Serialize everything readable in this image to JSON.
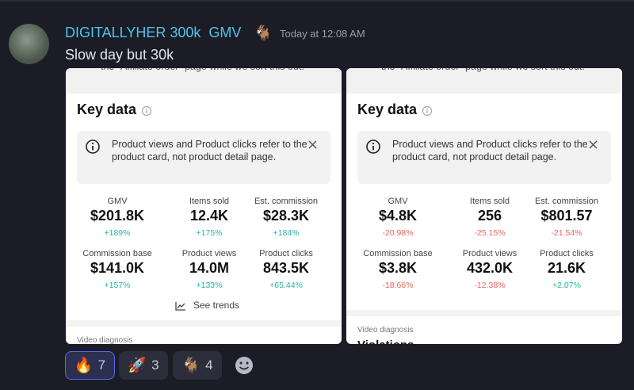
{
  "message": {
    "author": "DIGITALLYHER 300k  GMV",
    "author_emoji": "🐐",
    "timestamp": "Today at 12:08 AM",
    "text": "Slow day but 30k"
  },
  "cards": [
    {
      "top_text": "the “Affiliate order” page while we sort this out.",
      "title": "Key data",
      "notice": "Product views and Product clicks refer to the product card, not product detail page.",
      "metrics": [
        {
          "label": "GMV",
          "value": "$201.8K",
          "change": "+189%"
        },
        {
          "label": "Items sold",
          "value": "12.4K",
          "change": "+175%"
        },
        {
          "label": "Est. commission",
          "value": "$28.3K",
          "change": "+184%"
        },
        {
          "label": "Commission base",
          "value": "$141.0K",
          "change": "+157%"
        },
        {
          "label": "Product views",
          "value": "14.0M",
          "change": "+133%"
        },
        {
          "label": "Product clicks",
          "value": "843.5K",
          "change": "+65.44%"
        }
      ],
      "footer": "See trends",
      "section": "Video diagnosis"
    },
    {
      "top_text": "the “Affiliate order” page while we sort this out.",
      "title": "Key data",
      "notice": "Product views and Product clicks refer to the product card, not product detail page.",
      "metrics": [
        {
          "label": "GMV",
          "value": "$4.8K",
          "change": "-20.98%"
        },
        {
          "label": "Items sold",
          "value": "256",
          "change": "-25.15%"
        },
        {
          "label": "Est. commission",
          "value": "$801.57",
          "change": "-21.54%"
        },
        {
          "label": "Commission base",
          "value": "$3.8K",
          "change": "-18.66%"
        },
        {
          "label": "Product views",
          "value": "432.0K",
          "change": "-12.38%"
        },
        {
          "label": "Product clicks",
          "value": "21.6K",
          "change": "+2.07%"
        }
      ],
      "section": "Video diagnosis",
      "section_heading": "Violations"
    }
  ],
  "reactions": [
    {
      "emoji": "🔥",
      "count": 7,
      "selected": true
    },
    {
      "emoji": "🚀",
      "count": 3
    },
    {
      "emoji": "🐐",
      "count": 4
    }
  ]
}
